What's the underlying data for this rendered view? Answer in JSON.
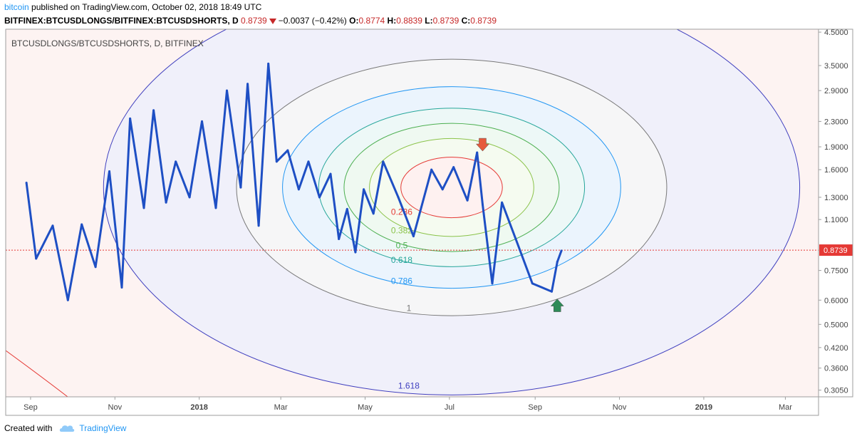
{
  "header": {
    "author": "bitcoin",
    "published_text": "published on TradingView.com, October 02, 2018 18:49 UTC",
    "symbol_line": "BITFINEX:BTCUSDLONGS/BITFINEX:BTCUSDSHORTS, D",
    "last": "0.8739",
    "change": "−0.0037 (−0.42%)",
    "o_label": "O:",
    "o": "0.8774",
    "h_label": "H:",
    "h": "0.8839",
    "l_label": "L:",
    "l": "0.8739",
    "c_label": "C:",
    "c": "0.8739"
  },
  "footer": {
    "created_with": "Created with",
    "brand": "TradingView"
  },
  "chart_data": {
    "type": "line",
    "title": "BTCUSDLONGS/BTCUSDSHORTS, D, BITFINEX",
    "y_scale": "log",
    "ylim": [
      0.29,
      4.6
    ],
    "y_ticks": [
      "4.5000",
      "3.5000",
      "2.9000",
      "2.3000",
      "1.9000",
      "1.6000",
      "1.3000",
      "1.1000",
      "0.8739",
      "0.7500",
      "0.6000",
      "0.5000",
      "0.4200",
      "0.3600",
      "0.3050"
    ],
    "y_tick_values": [
      4.5,
      3.5,
      2.9,
      2.3,
      1.9,
      1.6,
      1.3,
      1.1,
      0.8739,
      0.75,
      0.6,
      0.5,
      0.42,
      0.36,
      0.305
    ],
    "x_ticks": [
      "Sep",
      "Nov",
      "2018",
      "Mar",
      "May",
      "Jul",
      "Sep",
      "Nov",
      "2019",
      "Mar"
    ],
    "x_tick_dates": [
      "2017-09-01",
      "2017-11-01",
      "2018-01-01",
      "2018-03-01",
      "2018-05-01",
      "2018-07-01",
      "2018-09-01",
      "2018-11-01",
      "2019-01-01",
      "2019-03-01"
    ],
    "xlim": [
      "2017-08-14",
      "2019-03-25"
    ],
    "last_price": 0.8739,
    "zigzag": {
      "dates": [
        "2017-08-29",
        "2017-09-05",
        "2017-09-17",
        "2017-09-28",
        "2017-10-08",
        "2017-10-18",
        "2017-10-28",
        "2017-11-06",
        "2017-11-12",
        "2017-11-22",
        "2017-11-29",
        "2017-12-08",
        "2017-12-15",
        "2017-12-25",
        "2018-01-03",
        "2018-01-13",
        "2018-01-21",
        "2018-01-31",
        "2018-02-05",
        "2018-02-13",
        "2018-02-20",
        "2018-02-26",
        "2018-03-06",
        "2018-03-14",
        "2018-03-21",
        "2018-03-29",
        "2018-04-06",
        "2018-04-12",
        "2018-04-18",
        "2018-04-24",
        "2018-04-30",
        "2018-05-07",
        "2018-05-14",
        "2018-05-25",
        "2018-06-05",
        "2018-06-18",
        "2018-06-26",
        "2018-07-04",
        "2018-07-14",
        "2018-07-21",
        "2018-07-25",
        "2018-08-01",
        "2018-08-08",
        "2018-08-18",
        "2018-08-30",
        "2018-09-13",
        "2018-09-17",
        "2018-09-20"
      ],
      "values": [
        1.45,
        0.82,
        1.05,
        0.6,
        1.06,
        0.77,
        1.58,
        0.66,
        2.35,
        1.2,
        2.5,
        1.25,
        1.7,
        1.3,
        2.3,
        1.2,
        2.9,
        1.4,
        3.05,
        1.05,
        3.55,
        1.7,
        1.85,
        1.38,
        1.7,
        1.3,
        1.55,
        0.95,
        1.19,
        0.86,
        1.38,
        1.15,
        1.7,
        1.3,
        0.97,
        1.6,
        1.38,
        1.63,
        1.27,
        1.82,
        1.23,
        0.68,
        1.25,
        0.95,
        0.68,
        0.64,
        0.8,
        0.87
      ]
    },
    "fib_circle_levels": [
      "0.236",
      "0.382",
      "0.5",
      "0.618",
      "0.786",
      "1",
      "1.618"
    ],
    "fib_colors": [
      "#e53935",
      "#8bc34a",
      "#4caf50",
      "#26a69a",
      "#2196f3",
      "#787878",
      "#3f3fbf"
    ],
    "arrows": [
      {
        "direction": "down",
        "date": "2018-07-25",
        "value": 1.9,
        "color": "#e65a3c"
      },
      {
        "direction": "up",
        "date": "2018-09-17",
        "value": 0.58,
        "color": "#2e8b57"
      }
    ]
  }
}
